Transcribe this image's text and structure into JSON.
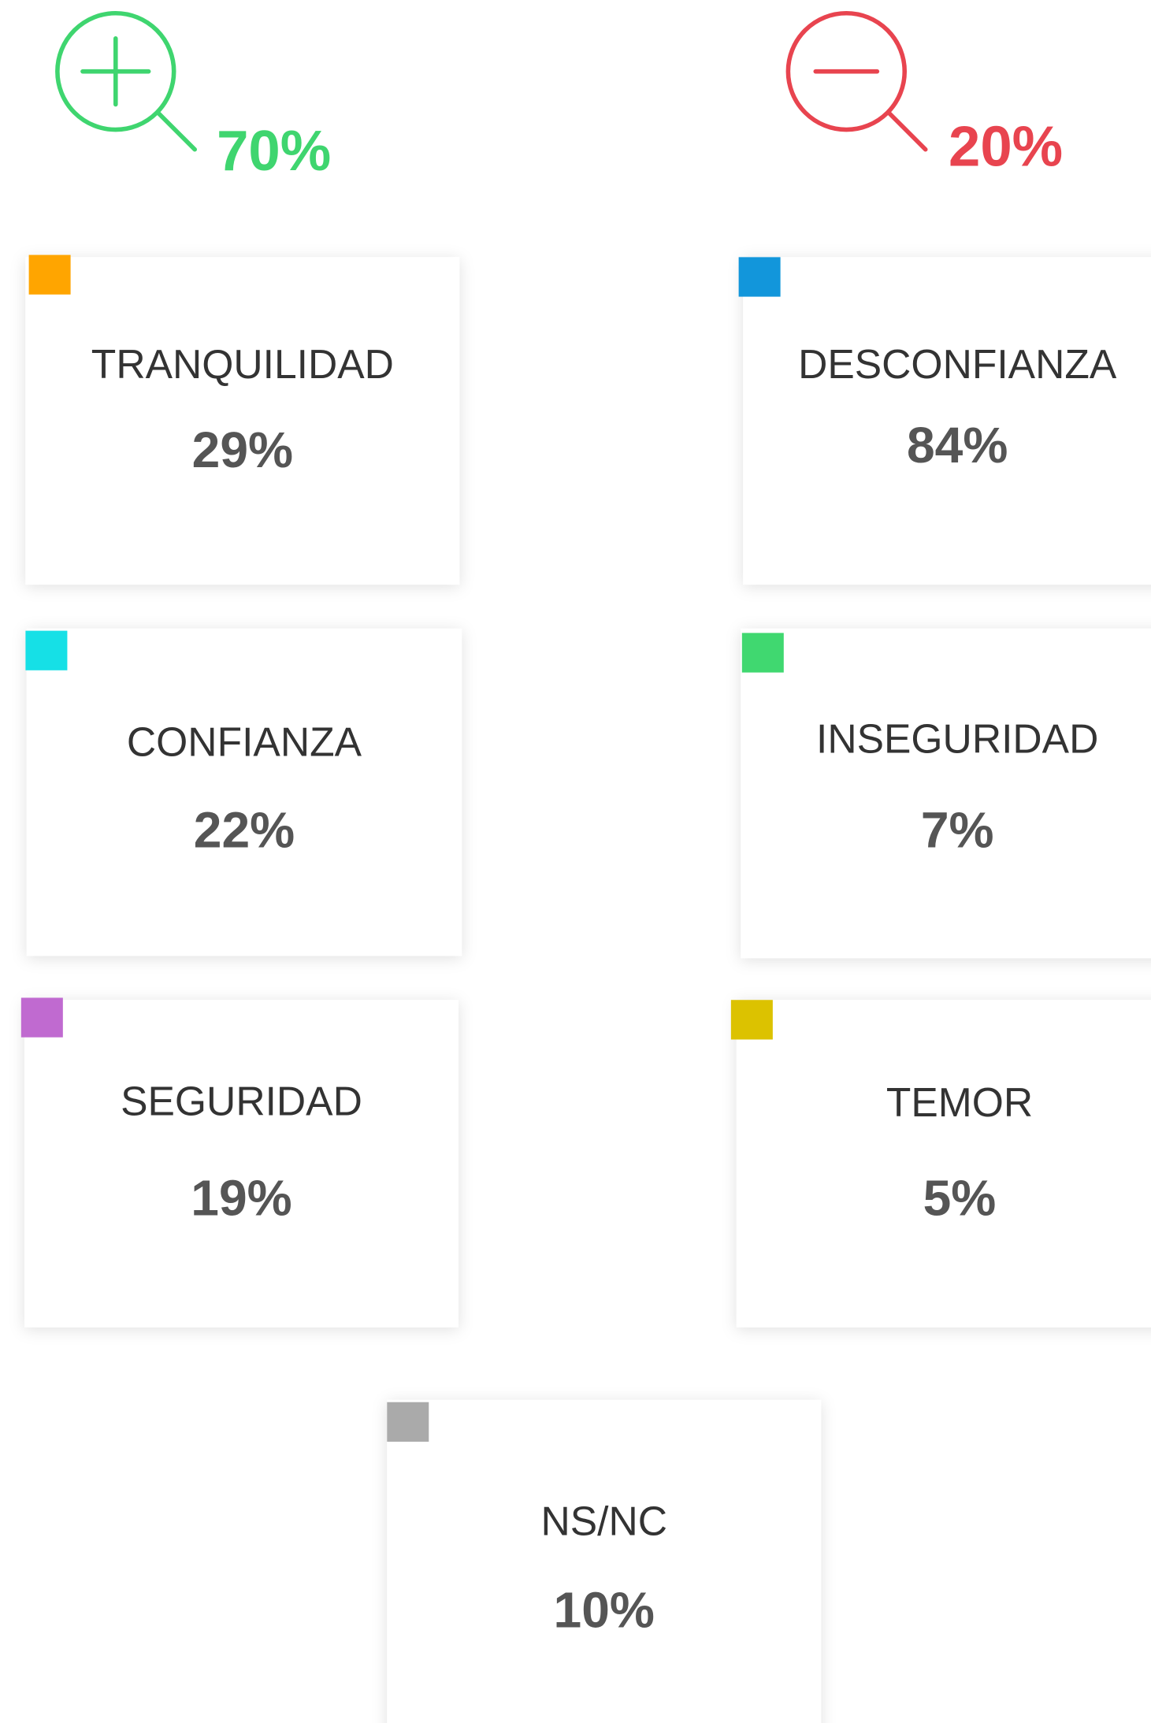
{
  "summary": {
    "positive": {
      "value": "70%",
      "color": "#3fd56f"
    },
    "negative": {
      "value": "20%",
      "color": "#e8444f"
    }
  },
  "cards": [
    {
      "label": "TRANQUILIDAD",
      "value": "29%",
      "color": "#ffa500"
    },
    {
      "label": "DESCONFIANZA",
      "value": "84%",
      "color": "#1296db"
    },
    {
      "label": "CONFIANZA",
      "value": "22%",
      "color": "#16e0e6"
    },
    {
      "label": "INSEGURIDAD",
      "value": "7%",
      "color": "#40d870"
    },
    {
      "label": "SEGURIDAD",
      "value": "19%",
      "color": "#c06ad0"
    },
    {
      "label": "TEMOR",
      "value": "5%",
      "color": "#dcc200"
    },
    {
      "label": "NS/NC",
      "value": "10%",
      "color": "#aaaaaa"
    }
  ]
}
